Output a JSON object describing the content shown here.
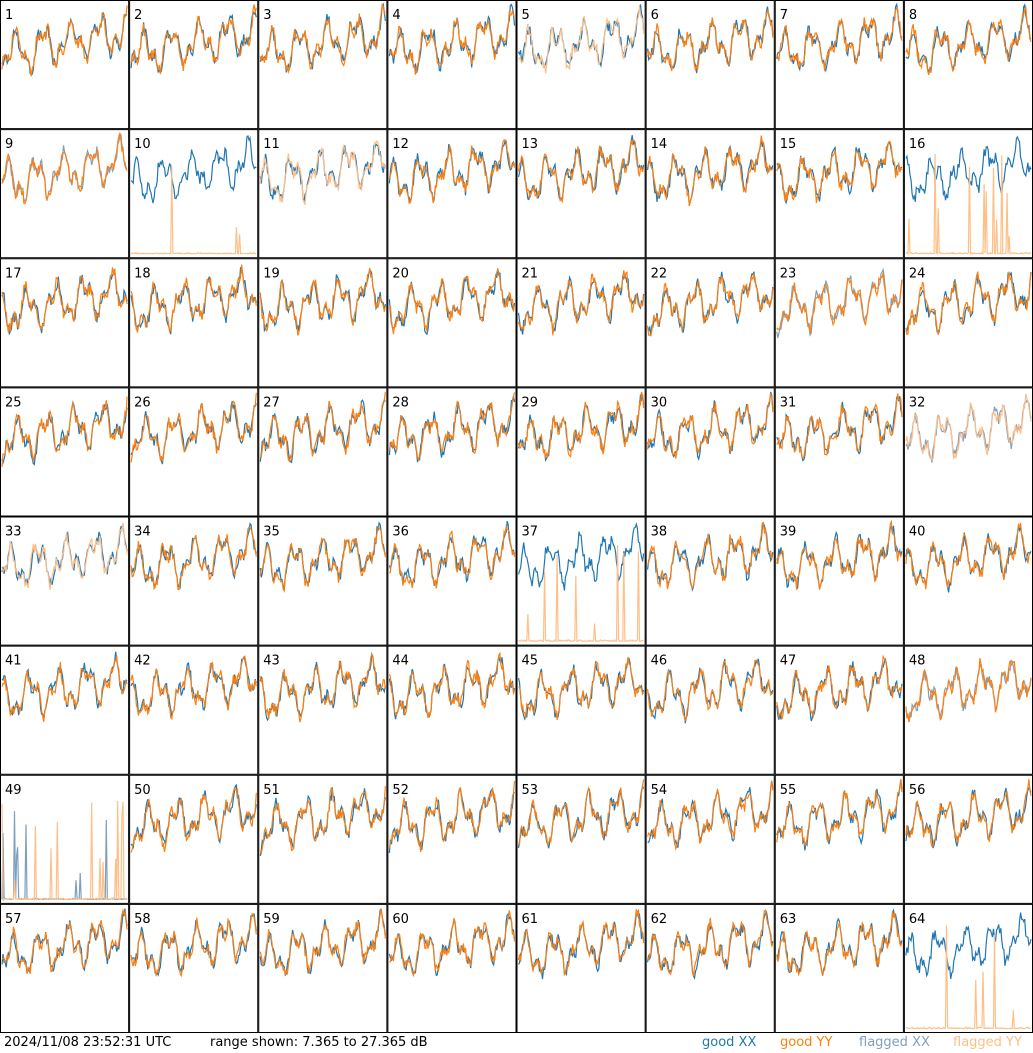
{
  "footer": {
    "timestamp": "2024/11/08 23:52:31 UTC",
    "range_text": "range shown: 7.365 to 27.365 dB"
  },
  "legend": {
    "good_xx": {
      "label": "good XX",
      "color": "#1f77b4"
    },
    "good_yy": {
      "label": "good YY",
      "color": "#ff7f0e"
    },
    "flagged_xx": {
      "label": "flagged XX",
      "color": "#7f9fbf"
    },
    "flagged_yy": {
      "label": "flagged YY",
      "color": "#ffbf87"
    }
  },
  "chart_data": {
    "type": "line",
    "layout": "small-multiples 8x8",
    "ylim": [
      7.365,
      27.365
    ],
    "units": "dB",
    "panels": [
      {
        "id": "1",
        "xx": "good",
        "yy": "good"
      },
      {
        "id": "2",
        "xx": "good",
        "yy": "good"
      },
      {
        "id": "3",
        "xx": "good",
        "yy": "good"
      },
      {
        "id": "4",
        "xx": "good",
        "yy": "good"
      },
      {
        "id": "5",
        "xx": "good",
        "yy": "flagged"
      },
      {
        "id": "6",
        "xx": "good",
        "yy": "good"
      },
      {
        "id": "7",
        "xx": "good",
        "yy": "good"
      },
      {
        "id": "8",
        "xx": "good",
        "yy": "good"
      },
      {
        "id": "9",
        "xx": "flagged",
        "yy": "good"
      },
      {
        "id": "10",
        "xx": "good",
        "yy": "flagged"
      },
      {
        "id": "11",
        "xx": "good",
        "yy": "flagged"
      },
      {
        "id": "12",
        "xx": "good",
        "yy": "good"
      },
      {
        "id": "13",
        "xx": "good",
        "yy": "good"
      },
      {
        "id": "14",
        "xx": "good",
        "yy": "good"
      },
      {
        "id": "15",
        "xx": "good",
        "yy": "good"
      },
      {
        "id": "16",
        "xx": "good",
        "yy": "flagged"
      },
      {
        "id": "17",
        "xx": "good",
        "yy": "good"
      },
      {
        "id": "18",
        "xx": "good",
        "yy": "good"
      },
      {
        "id": "19",
        "xx": "good",
        "yy": "good"
      },
      {
        "id": "20",
        "xx": "good",
        "yy": "good"
      },
      {
        "id": "21",
        "xx": "good",
        "yy": "good"
      },
      {
        "id": "22",
        "xx": "good",
        "yy": "good"
      },
      {
        "id": "23",
        "xx": "flagged",
        "yy": "good"
      },
      {
        "id": "24",
        "xx": "good",
        "yy": "good"
      },
      {
        "id": "25",
        "xx": "good",
        "yy": "good"
      },
      {
        "id": "26",
        "xx": "good",
        "yy": "good"
      },
      {
        "id": "27",
        "xx": "good",
        "yy": "good"
      },
      {
        "id": "28",
        "xx": "good",
        "yy": "good"
      },
      {
        "id": "29",
        "xx": "good",
        "yy": "good"
      },
      {
        "id": "30",
        "xx": "good",
        "yy": "good"
      },
      {
        "id": "31",
        "xx": "good",
        "yy": "good"
      },
      {
        "id": "32",
        "xx": "flagged",
        "yy": "flagged"
      },
      {
        "id": "33",
        "xx": "good",
        "yy": "flagged"
      },
      {
        "id": "34",
        "xx": "good",
        "yy": "good"
      },
      {
        "id": "35",
        "xx": "good",
        "yy": "good"
      },
      {
        "id": "36",
        "xx": "good",
        "yy": "good"
      },
      {
        "id": "37",
        "xx": "good",
        "yy": "flagged"
      },
      {
        "id": "38",
        "xx": "good",
        "yy": "good"
      },
      {
        "id": "39",
        "xx": "good",
        "yy": "good"
      },
      {
        "id": "40",
        "xx": "good",
        "yy": "good"
      },
      {
        "id": "41",
        "xx": "good",
        "yy": "good"
      },
      {
        "id": "42",
        "xx": "good",
        "yy": "good"
      },
      {
        "id": "43",
        "xx": "good",
        "yy": "good"
      },
      {
        "id": "44",
        "xx": "good",
        "yy": "good"
      },
      {
        "id": "45",
        "xx": "good",
        "yy": "good"
      },
      {
        "id": "46",
        "xx": "good",
        "yy": "good"
      },
      {
        "id": "47",
        "xx": "good",
        "yy": "good"
      },
      {
        "id": "48",
        "xx": "flagged",
        "yy": "good"
      },
      {
        "id": "49",
        "xx": "flagged",
        "yy": "flagged"
      },
      {
        "id": "50",
        "xx": "good",
        "yy": "good"
      },
      {
        "id": "51",
        "xx": "good",
        "yy": "good"
      },
      {
        "id": "52",
        "xx": "good",
        "yy": "good"
      },
      {
        "id": "53",
        "xx": "good",
        "yy": "good"
      },
      {
        "id": "54",
        "xx": "good",
        "yy": "good"
      },
      {
        "id": "55",
        "xx": "good",
        "yy": "good"
      },
      {
        "id": "56",
        "xx": "good",
        "yy": "good"
      },
      {
        "id": "57",
        "xx": "good",
        "yy": "good"
      },
      {
        "id": "58",
        "xx": "good",
        "yy": "good"
      },
      {
        "id": "59",
        "xx": "good",
        "yy": "good"
      },
      {
        "id": "60",
        "xx": "good",
        "yy": "good"
      },
      {
        "id": "61",
        "xx": "good",
        "yy": "good"
      },
      {
        "id": "62",
        "xx": "good",
        "yy": "good"
      },
      {
        "id": "63",
        "xx": "good",
        "yy": "good"
      },
      {
        "id": "64",
        "xx": "good",
        "yy": "flagged"
      }
    ]
  }
}
